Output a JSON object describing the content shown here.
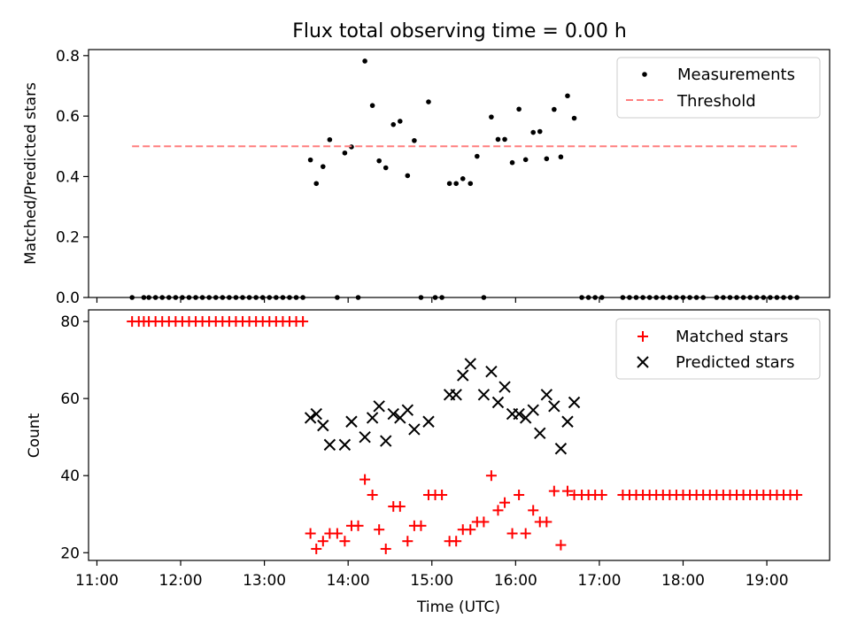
{
  "title": "Flux total observing time = 0.00 h",
  "x_axis": {
    "label": "Time (UTC)",
    "tick_hours": [
      11,
      12,
      13,
      14,
      15,
      16,
      17,
      18,
      19
    ],
    "tick_labels": [
      "11:00",
      "12:00",
      "13:00",
      "14:00",
      "15:00",
      "16:00",
      "17:00",
      "18:00",
      "19:00"
    ],
    "xlim_hours": [
      10.9,
      19.75
    ]
  },
  "chart_data": [
    {
      "type": "scatter",
      "panel": "top",
      "ylabel": "Matched/Predicted stars",
      "ylim": [
        0,
        0.82
      ],
      "y_ticks": [
        0.0,
        0.2,
        0.4,
        0.6,
        0.8
      ],
      "y_tick_labels": [
        "0.0",
        "0.2",
        "0.4",
        "0.6",
        "0.8"
      ],
      "legend_position": "top-right",
      "series": [
        {
          "name": "Measurements",
          "marker": "dot",
          "color": "#000000",
          "x_hours": [
            11.42,
            11.56,
            11.62,
            11.7,
            11.78,
            11.86,
            11.94,
            12.02,
            12.1,
            12.18,
            12.26,
            12.34,
            12.42,
            12.5,
            12.58,
            12.66,
            12.74,
            12.82,
            12.9,
            12.98,
            13.06,
            13.14,
            13.22,
            13.3,
            13.38,
            13.46,
            13.55,
            13.62,
            13.7,
            13.78,
            13.87,
            13.96,
            14.04,
            14.12,
            14.2,
            14.29,
            14.37,
            14.45,
            14.54,
            14.62,
            14.71,
            14.79,
            14.87,
            14.96,
            15.04,
            15.12,
            15.21,
            15.29,
            15.37,
            15.46,
            15.54,
            15.62,
            15.71,
            15.79,
            15.87,
            15.96,
            16.04,
            16.12,
            16.21,
            16.29,
            16.37,
            16.46,
            16.54,
            16.62,
            16.7,
            16.79,
            16.87,
            16.95,
            17.03,
            17.28,
            17.36,
            17.44,
            17.52,
            17.6,
            17.68,
            17.76,
            17.84,
            17.92,
            18.0,
            18.08,
            18.16,
            18.24,
            18.4,
            18.48,
            18.56,
            18.64,
            18.72,
            18.8,
            18.88,
            18.96,
            19.04,
            19.12,
            19.2,
            19.28,
            19.36
          ],
          "y": [
            0,
            0,
            0,
            0,
            0,
            0,
            0,
            0,
            0,
            0,
            0,
            0,
            0,
            0,
            0,
            0,
            0,
            0,
            0,
            0,
            0,
            0,
            0,
            0,
            0,
            0,
            0.455,
            0.377,
            0.433,
            0.522,
            0,
            0.478,
            0.498,
            0,
            0.782,
            0.635,
            0.452,
            0.429,
            0.572,
            0.583,
            0.403,
            0.519,
            0,
            0.647,
            0,
            0,
            0.377,
            0.377,
            0.393,
            0.377,
            0.467,
            0,
            0.597,
            0.523,
            0.523,
            0.446,
            0.623,
            0.456,
            0.546,
            0.549,
            0.459,
            0.622,
            0.465,
            0.667,
            0.593,
            0,
            0,
            0,
            0,
            0,
            0,
            0,
            0,
            0,
            0,
            0,
            0,
            0,
            0,
            0,
            0,
            0,
            0,
            0,
            0,
            0,
            0,
            0,
            0,
            0,
            0,
            0,
            0,
            0,
            0
          ]
        },
        {
          "name": "Threshold",
          "line": "dashed",
          "color": "#ff7f7f",
          "x_hours": [
            11.42,
            19.36
          ],
          "y": [
            0.5,
            0.5
          ]
        }
      ]
    },
    {
      "type": "scatter",
      "panel": "bottom",
      "ylabel": "Count",
      "ylim": [
        18,
        83
      ],
      "y_ticks": [
        20,
        40,
        60,
        80
      ],
      "y_tick_labels": [
        "20",
        "40",
        "60",
        "80"
      ],
      "legend_position": "top-right",
      "series": [
        {
          "name": "Matched stars",
          "marker": "plus",
          "color": "#ff0000",
          "x_hours": [
            11.42,
            11.5,
            11.56,
            11.62,
            11.7,
            11.78,
            11.86,
            11.94,
            12.02,
            12.1,
            12.18,
            12.26,
            12.34,
            12.42,
            12.5,
            12.58,
            12.66,
            12.74,
            12.82,
            12.9,
            12.98,
            13.06,
            13.14,
            13.22,
            13.3,
            13.38,
            13.46,
            13.55,
            13.62,
            13.7,
            13.78,
            13.87,
            13.96,
            14.04,
            14.12,
            14.2,
            14.29,
            14.37,
            14.45,
            14.54,
            14.62,
            14.71,
            14.79,
            14.87,
            14.96,
            15.04,
            15.12,
            15.21,
            15.29,
            15.37,
            15.46,
            15.54,
            15.62,
            15.71,
            15.79,
            15.87,
            15.96,
            16.04,
            16.12,
            16.21,
            16.29,
            16.37,
            16.46,
            16.54,
            16.62,
            16.7,
            16.79,
            16.87,
            16.95,
            17.03,
            17.28,
            17.36,
            17.44,
            17.52,
            17.6,
            17.68,
            17.76,
            17.84,
            17.92,
            18.0,
            18.08,
            18.16,
            18.24,
            18.32,
            18.4,
            18.48,
            18.56,
            18.64,
            18.72,
            18.8,
            18.88,
            18.96,
            19.04,
            19.12,
            19.2,
            19.28,
            19.36
          ],
          "y": [
            80,
            80,
            80,
            80,
            80,
            80,
            80,
            80,
            80,
            80,
            80,
            80,
            80,
            80,
            80,
            80,
            80,
            80,
            80,
            80,
            80,
            80,
            80,
            80,
            80,
            80,
            80,
            25,
            21,
            23,
            25,
            25,
            23,
            27,
            27,
            39,
            35,
            26,
            21,
            32,
            32,
            23,
            27,
            27,
            35,
            35,
            35,
            23,
            23,
            26,
            26,
            28,
            28,
            40,
            31,
            33,
            25,
            35,
            25,
            31,
            28,
            28,
            36,
            22,
            36,
            35,
            35,
            35,
            35,
            35,
            35,
            35,
            35,
            35,
            35,
            35,
            35,
            35,
            35,
            35,
            35,
            35,
            35,
            35,
            35,
            35,
            35,
            35,
            35,
            35,
            35,
            35,
            35,
            35,
            35,
            35,
            35
          ]
        },
        {
          "name": "Predicted stars",
          "marker": "x",
          "color": "#000000",
          "x_hours": [
            13.55,
            13.62,
            13.7,
            13.78,
            13.96,
            14.04,
            14.2,
            14.29,
            14.37,
            14.45,
            14.54,
            14.62,
            14.71,
            14.79,
            14.96,
            15.21,
            15.29,
            15.37,
            15.46,
            15.62,
            15.71,
            15.79,
            15.87,
            15.96,
            16.04,
            16.12,
            16.21,
            16.29,
            16.37,
            16.46,
            16.54,
            16.62,
            16.7
          ],
          "y": [
            55,
            56,
            53,
            48,
            48,
            54,
            50,
            55,
            58,
            49,
            56,
            55,
            57,
            52,
            54,
            61,
            61,
            66,
            69,
            61,
            67,
            59,
            63,
            56,
            56,
            55,
            57,
            51,
            61,
            58,
            47,
            54,
            59
          ]
        }
      ]
    }
  ]
}
